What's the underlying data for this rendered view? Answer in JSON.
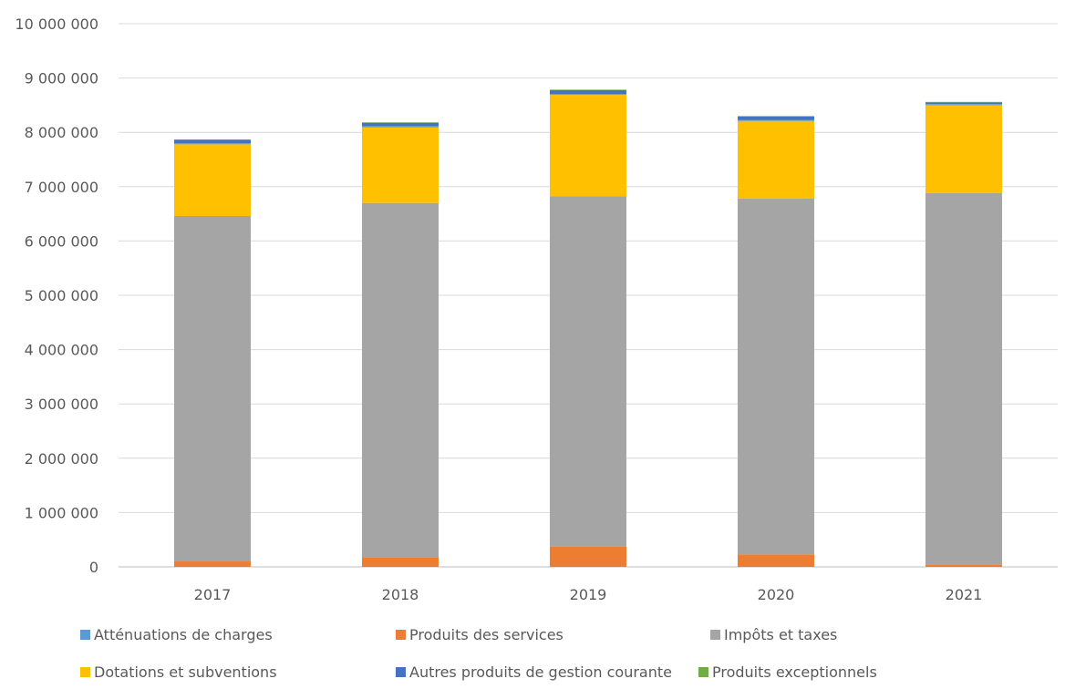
{
  "chart_data": {
    "type": "bar",
    "stacked": true,
    "categories": [
      "2017",
      "2018",
      "2019",
      "2020",
      "2021"
    ],
    "ylim": [
      0,
      10000000
    ],
    "yticks": [
      0,
      1000000,
      2000000,
      3000000,
      4000000,
      5000000,
      6000000,
      7000000,
      8000000,
      9000000,
      10000000
    ],
    "ytick_labels": [
      "0",
      "1 000 000",
      "2 000 000",
      "3 000 000",
      "4 000 000",
      "5 000 000",
      "6 000 000",
      "7 000 000",
      "8 000 000",
      "9 000 000",
      "10 000 000"
    ],
    "grid": true,
    "legend_position": "bottom",
    "series": [
      {
        "name": "Atténuations de charges",
        "color": "#5B9BD5",
        "values": [
          20000,
          25000,
          15000,
          20000,
          20000
        ]
      },
      {
        "name": "Produits des services",
        "color": "#ED7D31",
        "values": [
          100000,
          180000,
          370000,
          230000,
          40000
        ]
      },
      {
        "name": "Impôts et taxes",
        "color": "#A5A5A5",
        "values": [
          6360000,
          6520000,
          6450000,
          6550000,
          6840000
        ]
      },
      {
        "name": "Dotations et subventions",
        "color": "#FFC000",
        "values": [
          1320000,
          1390000,
          1870000,
          1430000,
          1620000
        ]
      },
      {
        "name": "Autres produits de gestion courante",
        "color": "#4472C4",
        "values": [
          60000,
          60000,
          70000,
          60000,
          30000
        ]
      },
      {
        "name": "Produits exceptionnels",
        "color": "#70AD47",
        "values": [
          10000,
          10000,
          10000,
          10000,
          10000
        ]
      }
    ]
  }
}
